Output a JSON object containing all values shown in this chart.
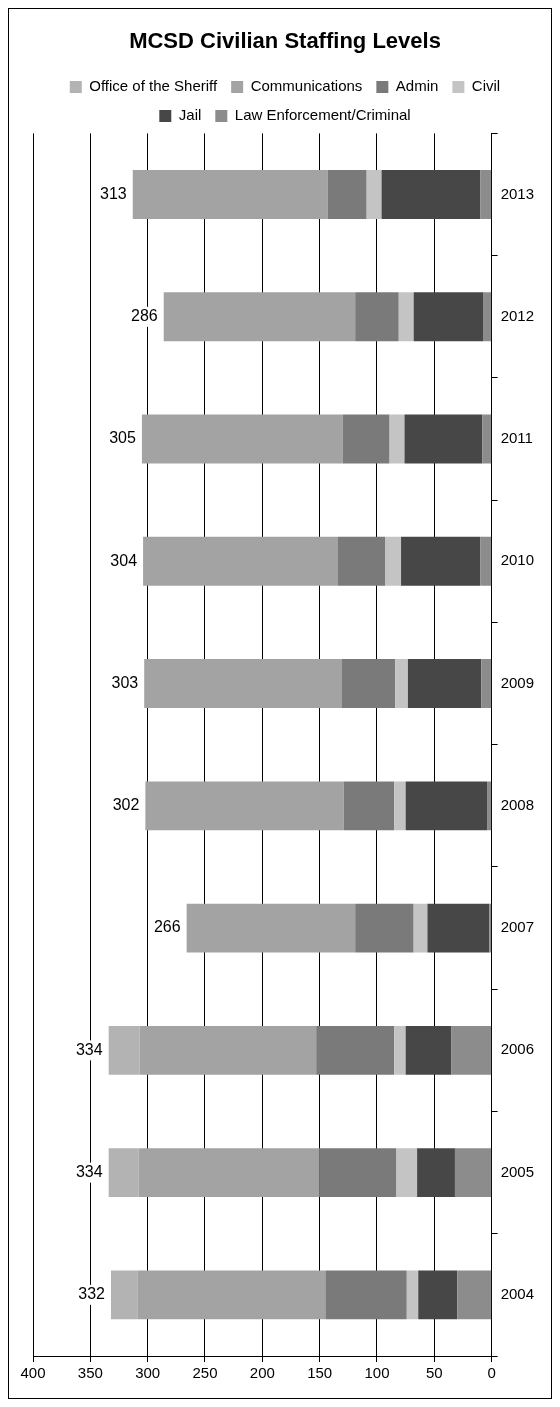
{
  "chart_data": {
    "type": "bar",
    "title": "MCSD Civilian Staffing Levels",
    "stacked": true,
    "orientation": "horizontal",
    "categories": [
      "2013",
      "2012",
      "2011",
      "2010",
      "2009",
      "2008",
      "2007",
      "2006",
      "2005",
      "2004"
    ],
    "series": [
      {
        "name": "Law Enforcement/Criminal",
        "color": "#8c8c8c",
        "values": [
          10,
          7,
          8,
          10,
          9,
          4,
          2,
          35,
          32,
          30
        ]
      },
      {
        "name": "Jail",
        "color": "#474747",
        "values": [
          86,
          61,
          68,
          69,
          64,
          71,
          54,
          40,
          33,
          34
        ]
      },
      {
        "name": "Civil",
        "color": "#c4c4c4",
        "values": [
          13,
          13,
          13,
          14,
          11,
          10,
          12,
          10,
          18,
          10
        ]
      },
      {
        "name": "Admin",
        "color": "#7a7a7a",
        "values": [
          34,
          38,
          41,
          41,
          47,
          44,
          51,
          68,
          67,
          71
        ]
      },
      {
        "name": "Communications",
        "color": "#a3a3a3",
        "values": [
          170,
          167,
          175,
          170,
          172,
          173,
          147,
          154,
          158,
          164
        ]
      },
      {
        "name": "Office of the Sheriff",
        "color": "#b3b3b3",
        "values": [
          0,
          0,
          0,
          0,
          0,
          0,
          0,
          27,
          26,
          23
        ]
      }
    ],
    "totals": [
      "313",
      "286",
      "305",
      "304",
      "303",
      "302",
      "266",
      "334",
      "334",
      "332"
    ],
    "xlim": [
      400,
      0
    ],
    "xticks": [
      0,
      50,
      100,
      150,
      200,
      250,
      300,
      350,
      400
    ],
    "grid": "x",
    "legend": "top"
  }
}
